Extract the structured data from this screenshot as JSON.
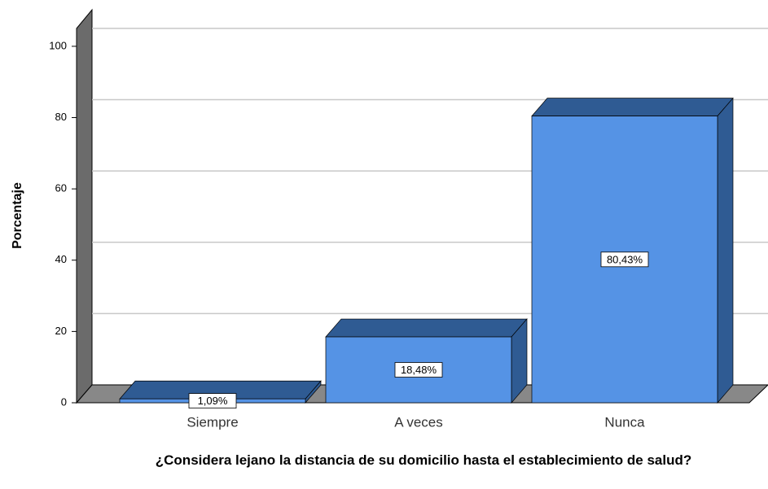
{
  "chart_data": {
    "type": "bar3d",
    "categories": [
      "Siempre",
      "A veces",
      "Nunca"
    ],
    "values": [
      1.09,
      18.48,
      80.43
    ],
    "value_labels": [
      "1,09%",
      "18,48%",
      "80,43%"
    ],
    "ylabel": "Porcentaje",
    "xlabel": "¿Considera lejano la distancia de su domicilio hasta el establecimiento de salud?",
    "color": "#5593e5",
    "shade_color": "#2f5b93",
    "ylim": [
      0,
      105
    ],
    "yticks": [
      0,
      20,
      40,
      60,
      80,
      100
    ],
    "grid": true
  }
}
